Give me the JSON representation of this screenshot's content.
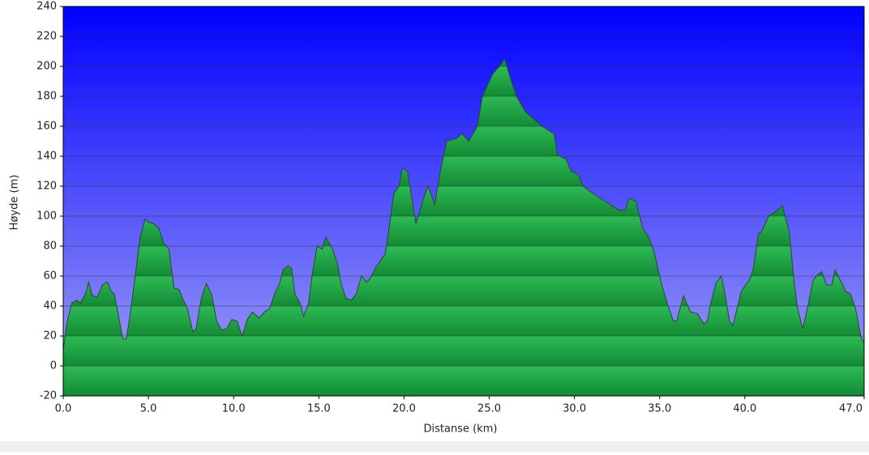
{
  "chart_data": {
    "type": "area",
    "xlabel": "Distanse   (km)",
    "ylabel": "Høyde (m)",
    "x": [
      0.0,
      0.2,
      0.5,
      0.8,
      1.0,
      1.3,
      1.5,
      1.7,
      2.0,
      2.3,
      2.6,
      2.8,
      3.0,
      3.3,
      3.5,
      3.7,
      3.9,
      4.2,
      4.5,
      4.8,
      5.0,
      5.3,
      5.6,
      5.9,
      6.2,
      6.5,
      6.8,
      7.0,
      7.3,
      7.6,
      7.8,
      8.1,
      8.4,
      8.7,
      9.0,
      9.3,
      9.6,
      9.9,
      10.2,
      10.5,
      10.8,
      11.1,
      11.3,
      11.5,
      11.8,
      12.1,
      12.4,
      12.7,
      12.9,
      13.2,
      13.4,
      13.6,
      13.9,
      14.1,
      14.4,
      14.6,
      14.9,
      15.2,
      15.4,
      15.8,
      16.1,
      16.3,
      16.6,
      16.9,
      17.2,
      17.5,
      17.8,
      18.0,
      18.3,
      18.6,
      18.9,
      19.1,
      19.4,
      19.7,
      19.9,
      20.2,
      20.7,
      21.1,
      21.4,
      21.8,
      22.1,
      22.5,
      23.1,
      23.4,
      23.8,
      24.3,
      24.6,
      25.2,
      25.6,
      25.9,
      26.3,
      26.6,
      27.1,
      27.6,
      28.1,
      28.8,
      29.0,
      29.5,
      29.8,
      30.2,
      30.5,
      31.1,
      31.8,
      32.6,
      33.0,
      33.2,
      33.6,
      34.0,
      34.4,
      34.7,
      35.1,
      35.5,
      35.8,
      36.0,
      36.4,
      36.8,
      37.2,
      37.6,
      37.8,
      38.0,
      38.3,
      38.6,
      38.8,
      39.1,
      39.3,
      39.8,
      40.3,
      40.5,
      40.8,
      41.0,
      41.4,
      41.8,
      42.2,
      42.6,
      42.9,
      43.1,
      43.4,
      43.7,
      44.0,
      44.2,
      44.5,
      44.8,
      45.1,
      45.3,
      45.7,
      45.9,
      46.2,
      46.5,
      46.8,
      47.0
    ],
    "series": [
      {
        "color": "#1fa848",
        "values": [
          10,
          28,
          42,
          44,
          42,
          48,
          56,
          47,
          46,
          54,
          56,
          50,
          48,
          30,
          18,
          18,
          32,
          58,
          85,
          98,
          96,
          95,
          92,
          82,
          78,
          52,
          51,
          45,
          38,
          23,
          25,
          45,
          55,
          48,
          30,
          24,
          25,
          31,
          30,
          20,
          31,
          36,
          34,
          32,
          36,
          38,
          48,
          55,
          64,
          67,
          65,
          48,
          42,
          33,
          42,
          60,
          80,
          78,
          86,
          78,
          68,
          55,
          45,
          44,
          48,
          60,
          56,
          58,
          65,
          70,
          75,
          90,
          115,
          120,
          132,
          130,
          95,
          110,
          120,
          108,
          128,
          150,
          152,
          155,
          150,
          160,
          180,
          195,
          200,
          205,
          190,
          180,
          170,
          165,
          160,
          155,
          141,
          138,
          130,
          128,
          120,
          115,
          110,
          104,
          104,
          112,
          110,
          92,
          85,
          75,
          55,
          40,
          30,
          30,
          47,
          36,
          35,
          28,
          30,
          42,
          55,
          60,
          50,
          30,
          27,
          50,
          58,
          65,
          88,
          90,
          100,
          103,
          107,
          90,
          55,
          38,
          25,
          40,
          57,
          60,
          63,
          54,
          54,
          64,
          55,
          50,
          48,
          38,
          20,
          15
        ]
      }
    ],
    "xlim": [
      0,
      47
    ],
    "xticks": [
      {
        "value": 0,
        "label": "0.0"
      },
      {
        "value": 5,
        "label": "5.0"
      },
      {
        "value": 10,
        "label": "10.0"
      },
      {
        "value": 15,
        "label": "15.0"
      },
      {
        "value": 20,
        "label": "20.0"
      },
      {
        "value": 25,
        "label": "25.0"
      },
      {
        "value": 30,
        "label": "30.0"
      },
      {
        "value": 35,
        "label": "35.0"
      },
      {
        "value": 40,
        "label": "40.0"
      },
      {
        "value": 47,
        "label": "47.0"
      }
    ],
    "ylim": [
      -20,
      240
    ],
    "yticks": [
      -20,
      0,
      20,
      40,
      60,
      80,
      100,
      120,
      140,
      160,
      180,
      200,
      220,
      240
    ],
    "grid": true
  }
}
